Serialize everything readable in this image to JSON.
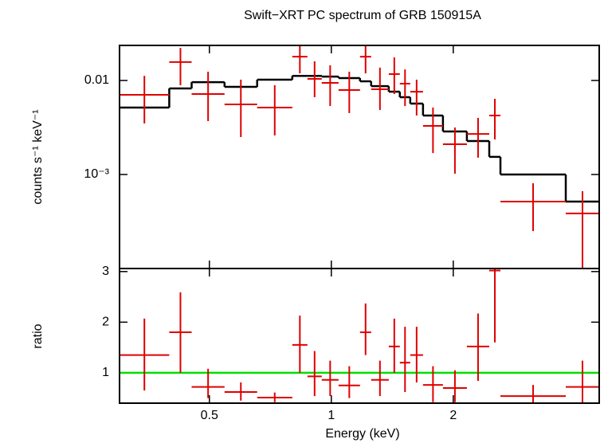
{
  "chart_data": [
    {
      "type": "errorbar",
      "title": "Swift−XRT PC spectrum of GRB 150915A",
      "ylabel": "counts s⁻¹ keV⁻¹",
      "log_x": true,
      "log_y": true,
      "bins": [
        0.3,
        0.398,
        0.452,
        0.545,
        0.656,
        0.801,
        0.873,
        0.947,
        1.042,
        1.177,
        1.254,
        1.386,
        1.476,
        1.566,
        1.684,
        1.886,
        2.161,
        2.454,
        2.615,
        3.791,
        4.585
      ],
      "xlim": [
        0.3,
        4.585
      ],
      "ylim": [
        0.0001,
        0.0236
      ],
      "yticks": [
        0.01,
        {
          "value": 0.001,
          "label": "10⁻³"
        }
      ],
      "data": {
        "color": "#e00000",
        "values": [
          0.00704,
          0.0157,
          0.00718,
          0.00557,
          0.00515,
          0.0179,
          0.0104,
          0.00944,
          0.00791,
          0.0179,
          0.00807,
          0.0117,
          0.00925,
          0.0076,
          0.00329,
          0.0021,
          0.0027,
          0.00424,
          0.000515,
          0.000385
        ],
        "lower": [
          0.00349,
          0.0089,
          0.0037,
          0.0025,
          0.0026,
          0.0119,
          0.00664,
          0.00535,
          0.0045,
          0.0119,
          0.00486,
          0.00718,
          0.00535,
          0.00424,
          0.00169,
          0.00102,
          0.00151,
          0.00236,
          0.00025,
          0.0001
        ],
        "upper": [
          0.0112,
          0.0222,
          0.0124,
          0.0102,
          0.0089,
          0.0236,
          0.016,
          0.0145,
          0.0124,
          0.0236,
          0.0137,
          0.0176,
          0.0131,
          0.0102,
          0.00515,
          0.00316,
          0.004,
          0.00638,
          0.000807,
          0.000664
        ]
      },
      "model": {
        "color": "#000000",
        "values": [
          0.00515,
          0.00823,
          0.0096,
          0.00855,
          0.0102,
          0.0112,
          0.0112,
          0.011,
          0.0106,
          0.0098,
          0.0087,
          0.0076,
          0.00664,
          0.00568,
          0.00424,
          0.00287,
          0.00227,
          0.00154,
          0.001,
          0.000515
        ]
      }
    },
    {
      "type": "errorbar",
      "xlabel": "Energy (keV)",
      "ylabel": "ratio",
      "log_x": true,
      "log_y": false,
      "bins": [
        0.3,
        0.398,
        0.452,
        0.545,
        0.656,
        0.801,
        0.873,
        0.947,
        1.042,
        1.177,
        1.254,
        1.386,
        1.476,
        1.566,
        1.684,
        1.886,
        2.161,
        2.454,
        2.615,
        3.791,
        4.585
      ],
      "xlim": [
        0.3,
        4.585
      ],
      "xticks": [
        0.5,
        1,
        2
      ],
      "ylim": [
        0.4,
        3.06
      ],
      "yticks": [
        1,
        2,
        3
      ],
      "data": {
        "color": "#e00000",
        "values": [
          1.35,
          1.8,
          0.72,
          0.62,
          0.51,
          1.55,
          0.93,
          0.86,
          0.75,
          1.8,
          0.86,
          1.52,
          1.2,
          1.35,
          0.76,
          0.7,
          1.52,
          3.02,
          0.54,
          0.72
        ],
        "lower": [
          0.65,
          1.0,
          0.5,
          0.45,
          0.42,
          1.0,
          0.54,
          0.54,
          0.5,
          1.35,
          0.54,
          1.0,
          0.62,
          0.81,
          0.42,
          0.42,
          0.84,
          1.6,
          0.4,
          0.4
        ],
        "upper": [
          2.07,
          2.59,
          1.08,
          0.81,
          0.61,
          2.13,
          1.43,
          1.24,
          1.13,
          2.37,
          1.24,
          2.07,
          1.91,
          1.91,
          1.13,
          1.05,
          2.17,
          3.06,
          0.76,
          1.24
        ]
      },
      "reference": {
        "value": 1,
        "color": "#00e000"
      }
    }
  ]
}
